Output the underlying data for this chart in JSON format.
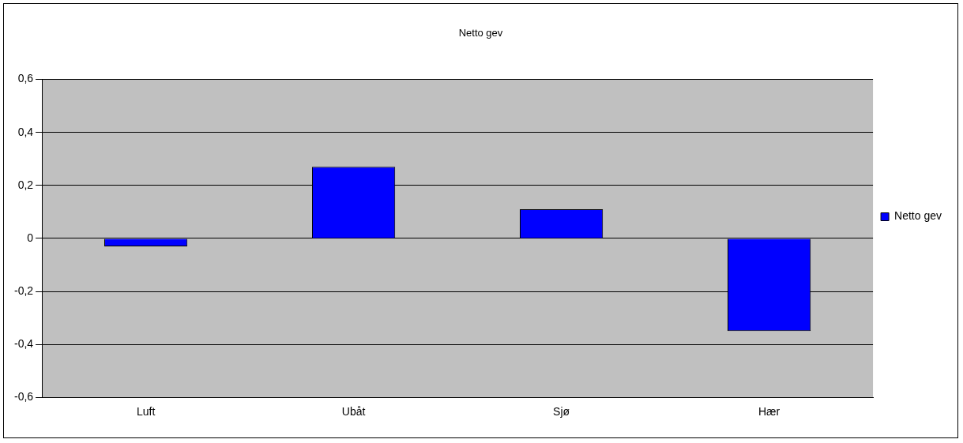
{
  "chart_data": {
    "type": "bar",
    "title": "Netto gev",
    "categories": [
      "Luft",
      "Ubåt",
      "Sjø",
      "Hær"
    ],
    "series": [
      {
        "name": "Netto gev",
        "color": "#0000ff",
        "values": [
          -0.03,
          0.27,
          0.11,
          -0.35
        ]
      }
    ],
    "ylim": [
      -0.6,
      0.6
    ],
    "yticks": [
      {
        "value": -0.6,
        "label": "-0,6"
      },
      {
        "value": -0.4,
        "label": "-0,4"
      },
      {
        "value": -0.2,
        "label": "-0,2"
      },
      {
        "value": 0,
        "label": "0"
      },
      {
        "value": 0.2,
        "label": "0,2"
      },
      {
        "value": 0.4,
        "label": "0,4"
      },
      {
        "value": 0.6,
        "label": "0,6"
      }
    ],
    "grid": "y",
    "legend": "right"
  }
}
